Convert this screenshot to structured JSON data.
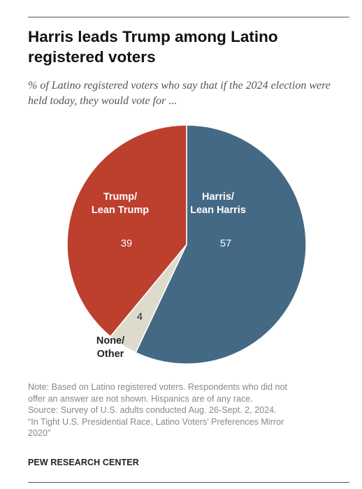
{
  "header": {
    "title": "Harris leads Trump among Latino registered voters",
    "subtitle": "% of Latino registered voters who say that if the 2024 election were held today, they would vote for ..."
  },
  "chart_data": {
    "type": "pie",
    "title": "Harris leads Trump among Latino registered voters",
    "subtitle": "% of Latino registered voters who say that if the 2024 election were held today, they would vote for ...",
    "slices": [
      {
        "label_lines": [
          "Harris/",
          "Lean Harris"
        ],
        "value": 57,
        "color": "#436985"
      },
      {
        "label_lines": [
          "None/",
          "Other"
        ],
        "value": 4,
        "color": "#dedbcc"
      },
      {
        "label_lines": [
          "Trump/",
          "Lean Trump"
        ],
        "value": 39,
        "color": "#bd3f2e"
      }
    ],
    "start": "12 o'clock",
    "direction": "clockwise"
  },
  "footer": {
    "note_lines": [
      "Note: Based on Latino registered voters. Respondents who did not",
      "offer an answer are not shown. Hispanics are of any race.",
      "Source: Survey of U.S. adults conducted Aug. 26-Sept. 2, 2024.",
      "“In Tight U.S. Presidential Race, Latino Voters’ Preferences Mirror",
      "2020”"
    ],
    "source": "PEW RESEARCH CENTER"
  }
}
